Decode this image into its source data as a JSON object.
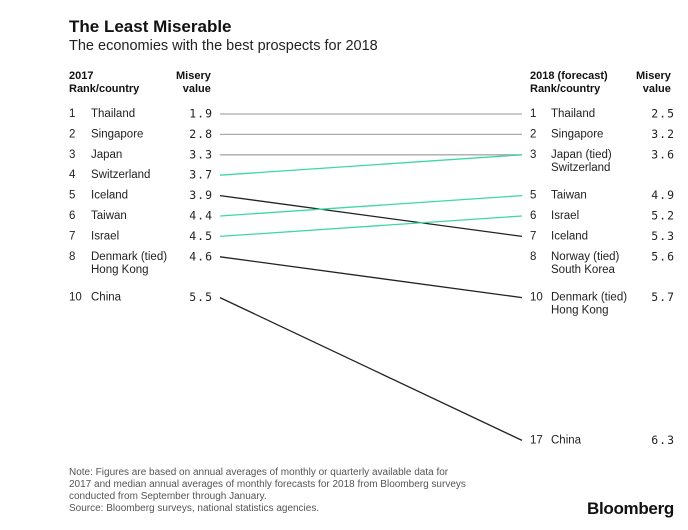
{
  "header": {
    "title": "The Least Miserable",
    "subtitle": "The economies with the best prospects for 2018"
  },
  "left_header": {
    "rank_line1": "2017",
    "rank_line2": "Rank/country",
    "value_line1": "Misery",
    "value_line2": "value"
  },
  "right_header": {
    "rank_line1": "2018 (forecast)",
    "rank_line2": "Rank/country",
    "value_line1": "Misery",
    "value_line2": "value"
  },
  "chart_data": {
    "type": "slope",
    "title": "The Least Miserable",
    "subtitle": "The economies with the best prospects for 2018",
    "left_column": "2017",
    "right_column": "2018 (forecast)",
    "left": [
      {
        "rank": "1",
        "names": [
          "Thailand"
        ],
        "value": "1.9"
      },
      {
        "rank": "2",
        "names": [
          "Singapore"
        ],
        "value": "2.8"
      },
      {
        "rank": "3",
        "names": [
          "Japan"
        ],
        "value": "3.3"
      },
      {
        "rank": "4",
        "names": [
          "Switzerland"
        ],
        "value": "3.7"
      },
      {
        "rank": "5",
        "names": [
          "Iceland"
        ],
        "value": "3.9"
      },
      {
        "rank": "6",
        "names": [
          "Taiwan"
        ],
        "value": "4.4"
      },
      {
        "rank": "7",
        "names": [
          "Israel"
        ],
        "value": "4.5"
      },
      {
        "rank": "8",
        "names": [
          "Denmark (tied)",
          "Hong Kong"
        ],
        "value": "4.6"
      },
      {
        "rank": "10",
        "names": [
          "China"
        ],
        "value": "5.5"
      }
    ],
    "right": [
      {
        "rank": "1",
        "names": [
          "Thailand"
        ],
        "value": "2.5"
      },
      {
        "rank": "2",
        "names": [
          "Singapore"
        ],
        "value": "3.2"
      },
      {
        "rank": "3",
        "names": [
          "Japan (tied)",
          "Switzerland"
        ],
        "value": "3.6"
      },
      {
        "rank": "5",
        "names": [
          "Taiwan"
        ],
        "value": "4.9"
      },
      {
        "rank": "6",
        "names": [
          "Israel"
        ],
        "value": "5.2"
      },
      {
        "rank": "7",
        "names": [
          "Iceland"
        ],
        "value": "5.3"
      },
      {
        "rank": "8",
        "names": [
          "Norway (tied)",
          "South Korea"
        ],
        "value": "5.6"
      },
      {
        "rank": "10",
        "names": [
          "Denmark (tied)",
          "Hong Kong"
        ],
        "value": "5.7"
      },
      {
        "rank": "17",
        "names": [
          "China"
        ],
        "value": "6.3"
      }
    ],
    "connectors": [
      {
        "country": "Thailand",
        "from_rank": 1,
        "to_rank": 1,
        "color": "#aaaaaa"
      },
      {
        "country": "Singapore",
        "from_rank": 2,
        "to_rank": 2,
        "color": "#aaaaaa"
      },
      {
        "country": "Japan",
        "from_rank": 3,
        "to_rank": 3,
        "color": "#aaaaaa"
      },
      {
        "country": "Switzerland",
        "from_rank": 4,
        "to_rank": 3,
        "color": "#3dd9a0"
      },
      {
        "country": "Iceland",
        "from_rank": 5,
        "to_rank": 7,
        "color": "#222222"
      },
      {
        "country": "Taiwan",
        "from_rank": 6,
        "to_rank": 5,
        "color": "#3dd9a0"
      },
      {
        "country": "Israel",
        "from_rank": 7,
        "to_rank": 6,
        "color": "#3dd9a0"
      },
      {
        "country": "Denmark",
        "from_rank": 8,
        "to_rank": 10,
        "color": "#222222"
      },
      {
        "country": "China",
        "from_rank": 10,
        "to_rank": 17,
        "color": "#222222"
      }
    ],
    "colors": {
      "unchanged": "#aaaaaa",
      "improved": "#3dd9a0",
      "worsened": "#222222"
    }
  },
  "footer": {
    "note_lines": [
      "Note: Figures are based on annual averages of monthly or quarterly available data for",
      "2017 and median annual averages of monthly forecasts for 2018 from Bloomberg surveys",
      "conducted from September through January.",
      "Source: Bloomberg surveys, national statistics agencies."
    ],
    "brand": "Bloomberg"
  }
}
